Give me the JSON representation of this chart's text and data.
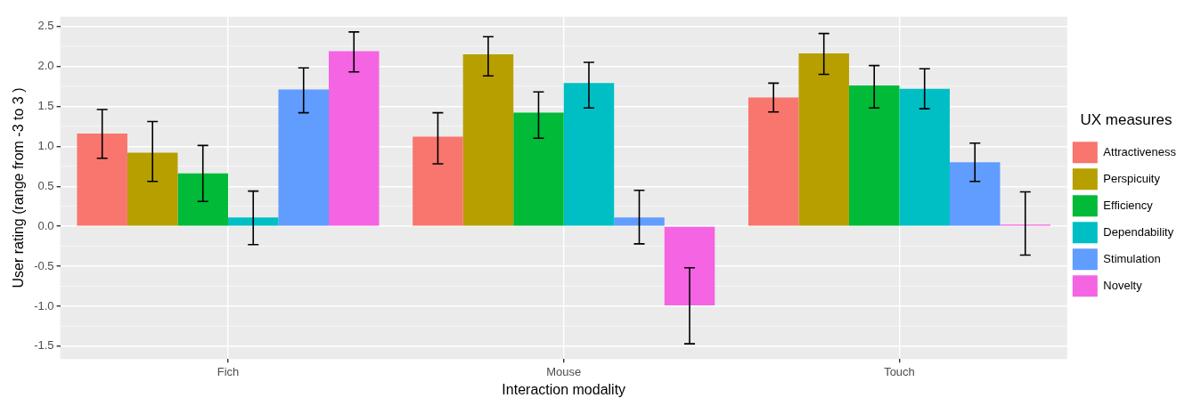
{
  "chart_data": {
    "type": "bar",
    "xlabel": "Interaction modality",
    "ylabel": "User rating (range from -3 to 3 )",
    "legend_title": "UX measures",
    "categories": [
      "Fich",
      "Mouse",
      "Touch"
    ],
    "series": [
      {
        "name": "Attractiveness",
        "color": "#f8766d",
        "values": [
          1.16,
          1.12,
          1.61
        ],
        "errors": [
          [
            0.85,
            1.46
          ],
          [
            0.78,
            1.42
          ],
          [
            1.43,
            1.79
          ]
        ]
      },
      {
        "name": "Perspicuity",
        "color": "#b79f00",
        "values": [
          0.92,
          2.15,
          2.16
        ],
        "errors": [
          [
            0.56,
            1.31
          ],
          [
            1.88,
            2.37
          ],
          [
            1.9,
            2.41
          ]
        ]
      },
      {
        "name": "Efficiency",
        "color": "#00ba38",
        "values": [
          0.66,
          1.42,
          1.76
        ],
        "errors": [
          [
            0.31,
            1.01
          ],
          [
            1.1,
            1.68
          ],
          [
            1.48,
            2.01
          ]
        ]
      },
      {
        "name": "Dependability",
        "color": "#00bfc4",
        "values": [
          0.11,
          1.79,
          1.72
        ],
        "errors": [
          [
            -0.23,
            0.44
          ],
          [
            1.48,
            2.05
          ],
          [
            1.47,
            1.97
          ]
        ]
      },
      {
        "name": "Stimulation",
        "color": "#619cff",
        "values": [
          1.71,
          0.11,
          0.8
        ],
        "errors": [
          [
            1.42,
            1.98
          ],
          [
            -0.22,
            0.45
          ],
          [
            0.56,
            1.04
          ]
        ]
      },
      {
        "name": "Novelty",
        "color": "#f564e3",
        "values": [
          2.19,
          -0.99,
          0.02
        ],
        "errors": [
          [
            1.93,
            2.43
          ],
          [
            -1.47,
            -0.52
          ],
          [
            -0.36,
            0.43
          ]
        ]
      }
    ],
    "ylim": [
      -1.66,
      2.62
    ],
    "yticks": [
      {
        "value": -1.5,
        "label": "-1.5"
      },
      {
        "value": -1,
        "label": "-1.0"
      },
      {
        "value": -0.5,
        "label": "-0.5"
      },
      {
        "value": 0,
        "label": "0.0"
      },
      {
        "value": 0.5,
        "label": "0.5"
      },
      {
        "value": 1,
        "label": "1.0"
      },
      {
        "value": 1.5,
        "label": "1.5"
      },
      {
        "value": 2,
        "label": "2.0"
      },
      {
        "value": 2.5,
        "label": "2.5"
      }
    ],
    "grid": true,
    "legend": "right"
  }
}
